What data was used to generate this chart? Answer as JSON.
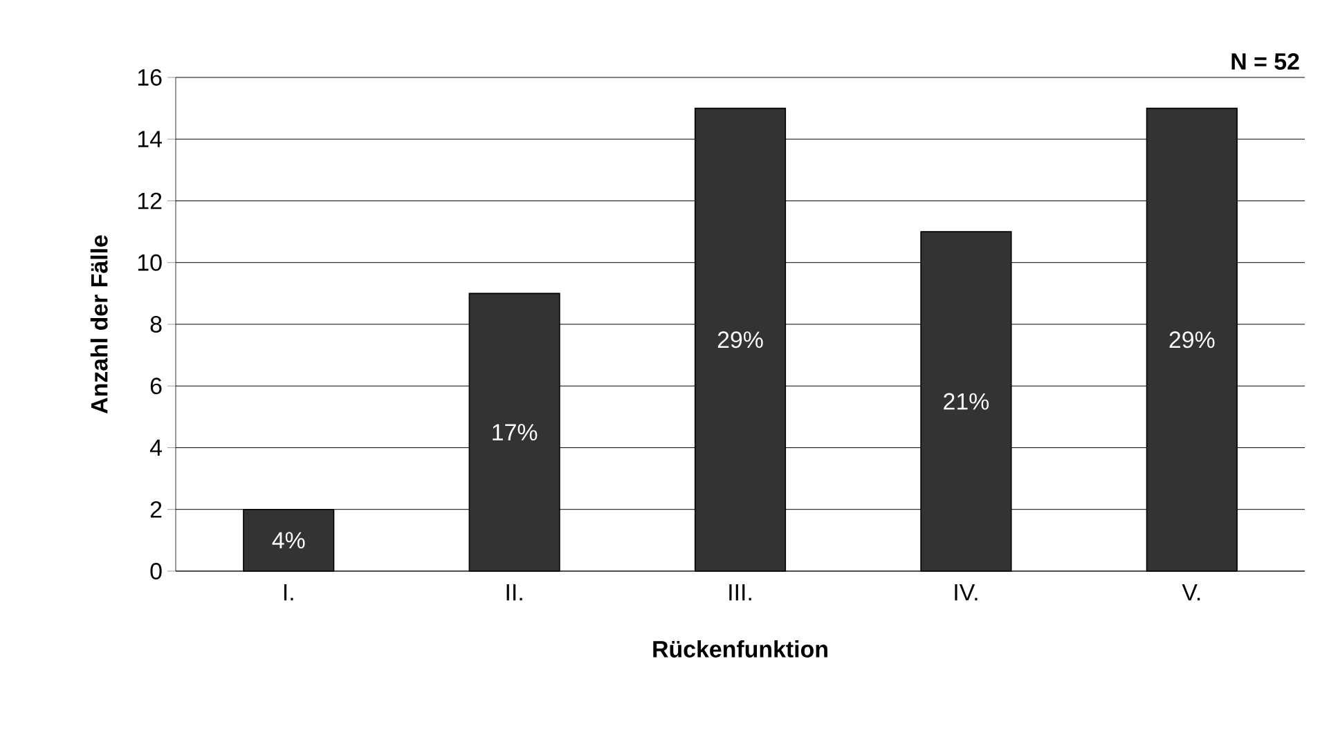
{
  "chart_data": {
    "type": "bar",
    "xlabel": "Rückenfunktion",
    "ylabel": "Anzahl der Fälle",
    "categories": [
      "I.",
      "II.",
      "III.",
      "IV.",
      "V."
    ],
    "values": [
      2,
      9,
      15,
      11,
      15
    ],
    "color": "#333333",
    "ylim": [
      0,
      16
    ],
    "yticks": [
      0,
      2,
      4,
      6,
      8,
      10,
      12,
      14,
      16
    ],
    "grid": "y",
    "annotations": [
      "N = 52",
      "4%",
      "17%",
      "29%",
      "21%",
      "29%"
    ]
  }
}
